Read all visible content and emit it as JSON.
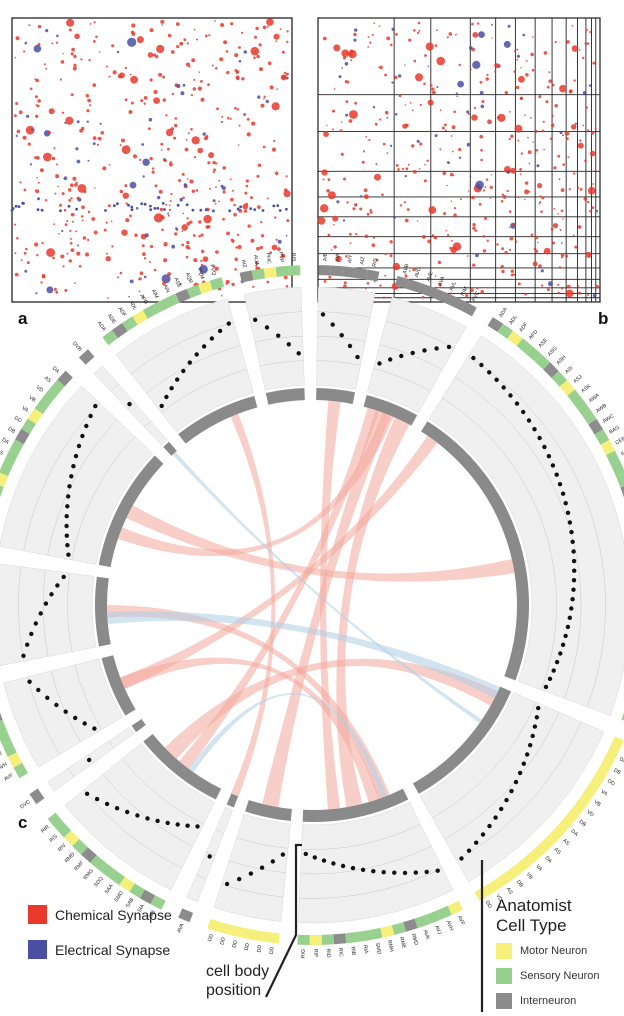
{
  "panels": {
    "a": {
      "letter": "a"
    },
    "b": {
      "letter": "b"
    },
    "c": {
      "letter": "c"
    }
  },
  "colors": {
    "chemical": "#e8392a",
    "electrical": "#4a4fa3",
    "motor": "#f6f07a",
    "sensory": "#98d08f",
    "inter": "#8c8c8c",
    "ring_bg": "#f0f0f0",
    "chord_red": "#f3a79b",
    "chord_blue": "#aecde6"
  },
  "synapse_legend": {
    "chemical": "Chemical Synapse",
    "electrical": "Electrical Synapse"
  },
  "cell_type_legend": {
    "title_line1": "Anatomist",
    "title_line2": "Cell Type",
    "motor": "Motor Neuron",
    "sensory": "Sensory Neuron",
    "inter": "Interneuron"
  },
  "cell_body_label": {
    "line1": "cell body",
    "line2": "position"
  },
  "groups": [
    {
      "labels": [
        "AIB",
        "AIA",
        "AIY",
        "AIZ",
        "RIS"
      ],
      "type": "inter"
    },
    {
      "labels": [
        "AVB",
        "AVD",
        "AVE",
        "AVA",
        "AVL",
        "RIM",
        "PVC"
      ],
      "type": "inter"
    },
    {
      "labels": [
        "ADA",
        "ADL",
        "ADF",
        "AFD",
        "ASE",
        "ASG",
        "ASH",
        "ASI",
        "ASJ",
        "ASK",
        "AWA",
        "AWB",
        "AWC",
        "BAG",
        "CEP",
        "IL1",
        "IL2",
        "OLL",
        "OLQ",
        "PHA",
        "PHB",
        "PLM",
        "PVD",
        "PVQ",
        "RIH",
        "RIP",
        "RIR",
        "RIV",
        "RMF",
        "RMG",
        "SAA",
        "SAB",
        "SDQ",
        "SMB",
        "URB",
        "URX",
        "URY",
        "VC"
      ],
      "type": "mixed"
    },
    {
      "labels": [
        "AS",
        "DA",
        "DB",
        "DD",
        "VA",
        "VB",
        "VD",
        "DB",
        "DA",
        "AS",
        "AS",
        "DA",
        "VA",
        "VB",
        "DB",
        "AS",
        "VD",
        "DD"
      ],
      "type": "motor"
    },
    {
      "labels": [
        "AVF",
        "AVH",
        "AVJ",
        "AVK",
        "RMD",
        "RME",
        "RMH",
        "SMD",
        "RIA",
        "RIB",
        "RIC",
        "RID",
        "RIF",
        "RIG"
      ],
      "type": "mixed"
    },
    {
      "labels": [
        "DD",
        "DD",
        "DD",
        "DD",
        "DD",
        "DD"
      ],
      "type": "motor"
    },
    {
      "labels": [
        "AVA"
      ],
      "type": "inter"
    },
    {
      "labels": [
        "SIB",
        "SIA",
        "SAB",
        "SMD",
        "SAA",
        "SDQ",
        "RMG",
        "RMF",
        "RMD",
        "RIV",
        "RIS",
        "RIR"
      ],
      "type": "mixed"
    },
    {
      "labels": [
        "DVC"
      ],
      "type": "inter"
    },
    {
      "labels": [
        "AVF",
        "AVH",
        "AVJ",
        "AVK",
        "BDU",
        "HSN",
        "PVM",
        "PVT"
      ],
      "type": "mixed"
    },
    {
      "labels": [
        "DB",
        "RID",
        "VB",
        "VB",
        "VB",
        "VB",
        "VC",
        "VC",
        "VC"
      ],
      "type": "motor"
    },
    {
      "labels": [
        "AS",
        "DA",
        "DB",
        "DD",
        "VA",
        "VB",
        "VD",
        "AS",
        "DA",
        "DB",
        "DD",
        "VA",
        "VB",
        "VD",
        "AS",
        "DA"
      ],
      "type": "mixed"
    },
    {
      "labels": [
        "DVB"
      ],
      "type": "inter"
    },
    {
      "labels": [
        "ADA",
        "ADE",
        "ADF",
        "ADL",
        "AFD",
        "AIM",
        "AIN",
        "ASE",
        "AQR",
        "PVM",
        "PVQ"
      ],
      "type": "mixed"
    },
    {
      "labels": [
        "AIZ",
        "AUA",
        "PHC",
        "PVP",
        "RIS"
      ],
      "type": "mixed"
    }
  ]
}
